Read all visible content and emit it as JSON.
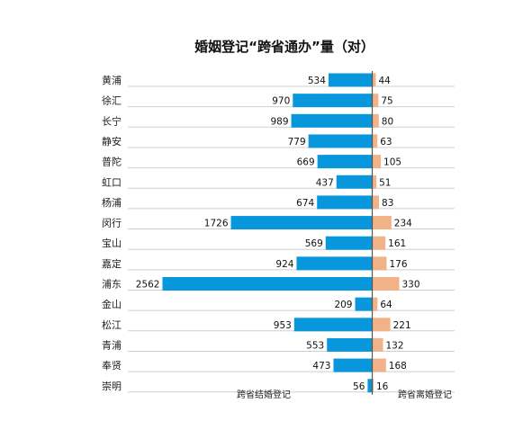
{
  "chart_data": {
    "type": "bar",
    "orientation": "horizontal",
    "layout": "butterfly",
    "title": "婚姻登记“跨省通办”量（对）",
    "categories": [
      "黄浦",
      "徐汇",
      "长宁",
      "静安",
      "普陀",
      "虹口",
      "杨浦",
      "闵行",
      "宝山",
      "嘉定",
      "浦东",
      "金山",
      "松江",
      "青浦",
      "奉贤",
      "崇明"
    ],
    "series": [
      {
        "name": "跨省结婚登记",
        "color": "#0896dc",
        "direction": "left",
        "values": [
          534,
          970,
          989,
          779,
          669,
          437,
          674,
          1726,
          569,
          924,
          2562,
          209,
          953,
          553,
          473,
          56
        ]
      },
      {
        "name": "跨省离婚登记",
        "color": "#f2b287",
        "direction": "right",
        "values": [
          44,
          75,
          80,
          63,
          105,
          51,
          83,
          234,
          161,
          176,
          330,
          64,
          221,
          132,
          168,
          16
        ]
      }
    ],
    "gridlines": true,
    "labels_shown": true
  }
}
